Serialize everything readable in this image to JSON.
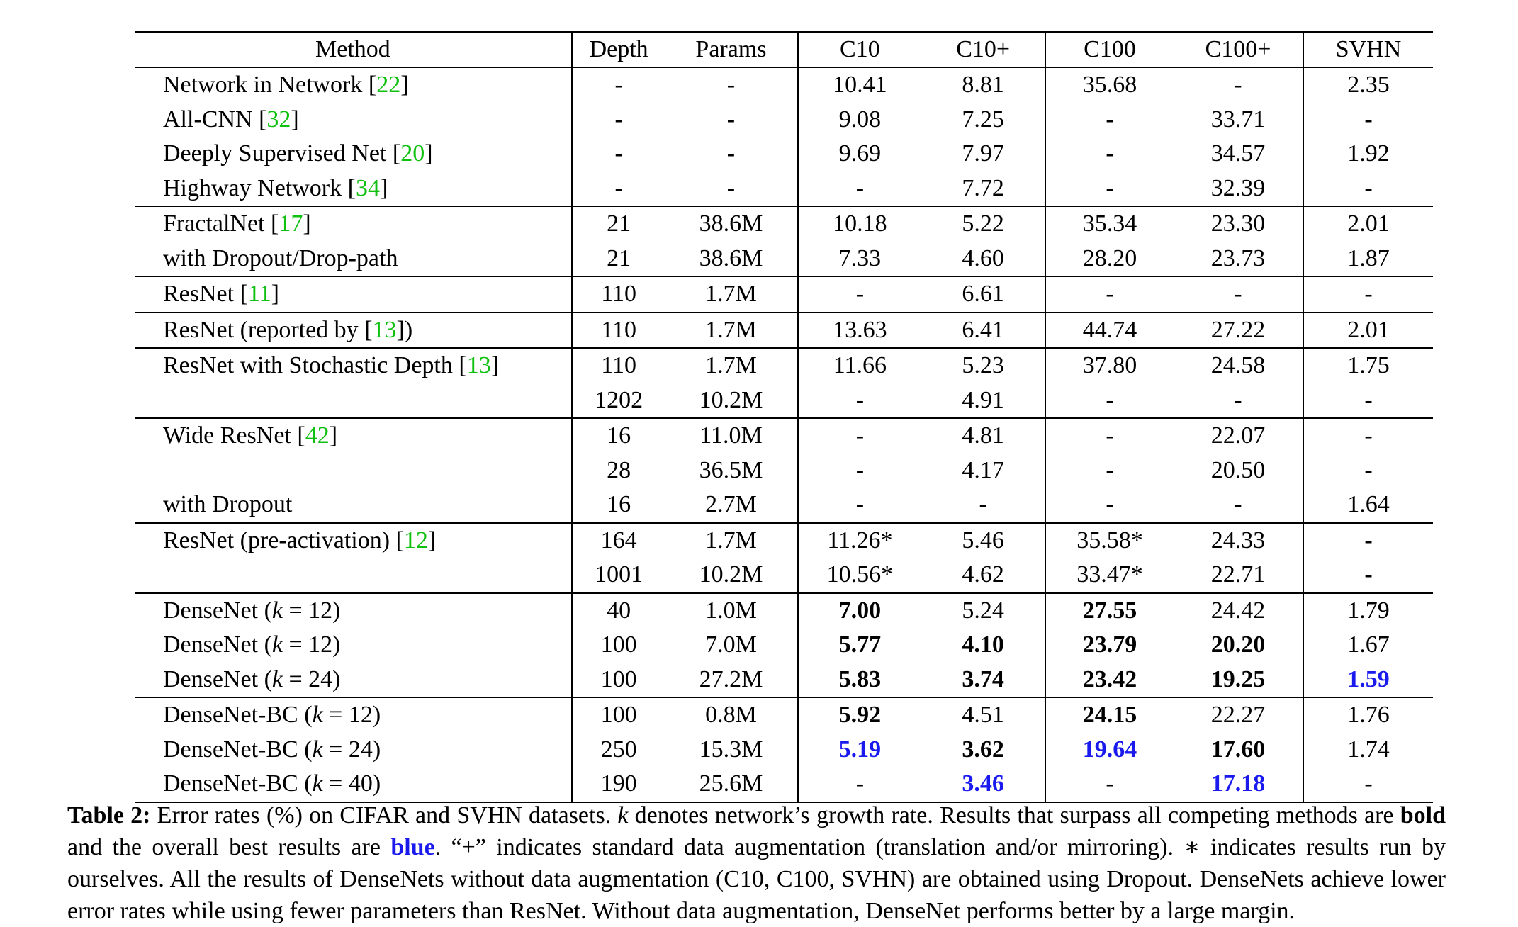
{
  "table": {
    "headers": [
      "Method",
      "Depth",
      "Params",
      "C10",
      "C10+",
      "C100",
      "C100+",
      "SVHN"
    ],
    "rows": [
      {
        "group_start": true,
        "method": "Network in Network",
        "cite": "22",
        "depth": "-",
        "params": "-",
        "c10": "10.41",
        "c10p": "8.81",
        "c100": "35.68",
        "c100p": "-",
        "svhn": "2.35"
      },
      {
        "method": "All-CNN",
        "cite": "32",
        "depth": "-",
        "params": "-",
        "c10": "9.08",
        "c10p": "7.25",
        "c100": "-",
        "c100p": "33.71",
        "svhn": "-"
      },
      {
        "method": "Deeply Supervised Net",
        "cite": "20",
        "depth": "-",
        "params": "-",
        "c10": "9.69",
        "c10p": "7.97",
        "c100": "-",
        "c100p": "34.57",
        "svhn": "1.92"
      },
      {
        "method": "Highway Network",
        "cite": "34",
        "depth": "-",
        "params": "-",
        "c10": "-",
        "c10p": "7.72",
        "c100": "-",
        "c100p": "32.39",
        "svhn": "-"
      },
      {
        "group_start": true,
        "method": "FractalNet",
        "cite": "17",
        "depth": "21",
        "params": "38.6M",
        "c10": "10.18",
        "c10p": "5.22",
        "c100": "35.34",
        "c100p": "23.30",
        "svhn": "2.01"
      },
      {
        "method": "with Dropout/Drop-path",
        "depth": "21",
        "params": "38.6M",
        "c10": "7.33",
        "c10p": "4.60",
        "c100": "28.20",
        "c100p": "23.73",
        "svhn": "1.87"
      },
      {
        "group_start": true,
        "method": "ResNet",
        "cite": "11",
        "depth": "110",
        "params": "1.7M",
        "c10": "-",
        "c10p": "6.61",
        "c100": "-",
        "c100p": "-",
        "svhn": "-"
      },
      {
        "group_start": true,
        "method": "ResNet (reported by",
        "cite": "13",
        "close": ")",
        "depth": "110",
        "params": "1.7M",
        "c10": "13.63",
        "c10p": "6.41",
        "c100": "44.74",
        "c100p": "27.22",
        "svhn": "2.01"
      },
      {
        "group_start": true,
        "method": "ResNet with Stochastic Depth",
        "cite": "13",
        "depth": "110",
        "params": "1.7M",
        "c10": "11.66",
        "c10p": "5.23",
        "c100": "37.80",
        "c100p": "24.58",
        "svhn": "1.75"
      },
      {
        "method": "",
        "depth": "1202",
        "params": "10.2M",
        "c10": "-",
        "c10p": "4.91",
        "c100": "-",
        "c100p": "-",
        "svhn": "-"
      },
      {
        "group_start": true,
        "method": "Wide ResNet",
        "cite": "42",
        "depth": "16",
        "params": "11.0M",
        "c10": "-",
        "c10p": "4.81",
        "c100": "-",
        "c100p": "22.07",
        "svhn": "-"
      },
      {
        "method": "",
        "depth": "28",
        "params": "36.5M",
        "c10": "-",
        "c10p": "4.17",
        "c100": "-",
        "c100p": "20.50",
        "svhn": "-"
      },
      {
        "method": "with Dropout",
        "depth": "16",
        "params": "2.7M",
        "c10": "-",
        "c10p": "-",
        "c100": "-",
        "c100p": "-",
        "svhn": "1.64"
      },
      {
        "group_start": true,
        "method": "ResNet (pre-activation)",
        "cite": "12",
        "depth": "164",
        "params": "1.7M",
        "c10": "11.26*",
        "c10p": "5.46",
        "c100": "35.58*",
        "c100p": "24.33",
        "svhn": "-"
      },
      {
        "method": "",
        "depth": "1001",
        "params": "10.2M",
        "c10": "10.56*",
        "c10p": "4.62",
        "c100": "33.47*",
        "c100p": "22.71",
        "svhn": "-"
      },
      {
        "group_start": true,
        "method": "DenseNet",
        "k": "12",
        "depth": "40",
        "params": "1.0M",
        "c10": "7.00",
        "c10p": "5.24",
        "c100": "27.55",
        "c100p": "24.42",
        "svhn": "1.79",
        "bold": [
          "c10",
          "c100"
        ],
        "blue": []
      },
      {
        "method": "DenseNet",
        "k": "12",
        "depth": "100",
        "params": "7.0M",
        "c10": "5.77",
        "c10p": "4.10",
        "c100": "23.79",
        "c100p": "20.20",
        "svhn": "1.67",
        "bold": [
          "c10",
          "c10p",
          "c100",
          "c100p"
        ],
        "blue": []
      },
      {
        "method": "DenseNet",
        "k": "24",
        "depth": "100",
        "params": "27.2M",
        "c10": "5.83",
        "c10p": "3.74",
        "c100": "23.42",
        "c100p": "19.25",
        "svhn": "1.59",
        "bold": [
          "c10",
          "c10p",
          "c100",
          "c100p",
          "svhn"
        ],
        "blue": [
          "svhn"
        ]
      },
      {
        "group_start": true,
        "method": "DenseNet-BC",
        "k": "12",
        "depth": "100",
        "params": "0.8M",
        "c10": "5.92",
        "c10p": "4.51",
        "c100": "24.15",
        "c100p": "22.27",
        "svhn": "1.76",
        "bold": [
          "c10",
          "c100"
        ],
        "blue": []
      },
      {
        "method": "DenseNet-BC",
        "k": "24",
        "depth": "250",
        "params": "15.3M",
        "c10": "5.19",
        "c10p": "3.62",
        "c100": "19.64",
        "c100p": "17.60",
        "svhn": "1.74",
        "bold": [
          "c10",
          "c10p",
          "c100",
          "c100p"
        ],
        "blue": [
          "c10",
          "c100"
        ]
      },
      {
        "method": "DenseNet-BC",
        "k": "40",
        "depth": "190",
        "params": "25.6M",
        "c10": "-",
        "c10p": "3.46",
        "c100": "-",
        "c100p": "17.18",
        "svhn": "-",
        "bold": [
          "c10p",
          "c100p"
        ],
        "blue": [
          "c10p",
          "c100p"
        ]
      }
    ]
  },
  "caption": {
    "label": "Table 2:",
    "part1": " Error rates (%) on CIFAR and SVHN datasets. ",
    "k_symbol": "k",
    "part2": " denotes network’s growth rate. Results that surpass all competing methods are ",
    "bold_word": "bold",
    "part3": " and the overall best results are ",
    "blue_word": "blue",
    "part4": ". “+” indicates standard data augmentation (translation and/or mirroring). ∗ indicates results run by ourselves. All the results of DenseNets without data augmentation (C10, C100, SVHN) are obtained using Dropout. DenseNets achieve lower error rates while using fewer parameters than ResNet. Without data augmentation, DenseNet performs better by a large margin."
  }
}
